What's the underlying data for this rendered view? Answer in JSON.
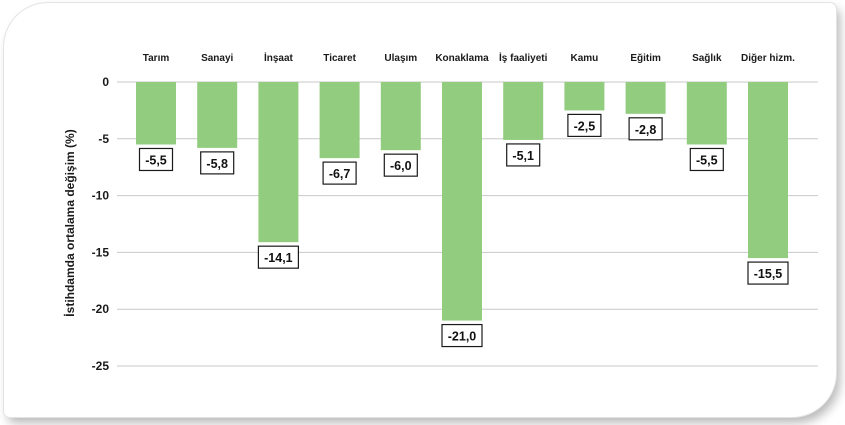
{
  "chart_data": {
    "type": "bar",
    "categories": [
      "Tarım",
      "Sanayi",
      "İnşaat",
      "Ticaret",
      "Ulaşım",
      "Konaklama",
      "İş faaliyeti",
      "Kamu",
      "Eğitim",
      "Sağlık",
      "Diğer hizm."
    ],
    "values": [
      -5.5,
      -5.8,
      -14.1,
      -6.7,
      -6.0,
      -21.0,
      -5.1,
      -2.5,
      -2.8,
      -5.5,
      -15.5
    ],
    "data_labels": [
      "-5,5",
      "-5,8",
      "-14,1",
      "-6,7",
      "-6,0",
      "-21,0",
      "-5,1",
      "-2,5",
      "-2,8",
      "-5,5",
      "-15,5"
    ],
    "ylabel": "İstihdamda ortalama değişim (%)",
    "ylim": [
      -25,
      0
    ],
    "yticks": [
      0,
      -5,
      -10,
      -15,
      -20,
      -25
    ],
    "ytick_labels": [
      "0",
      "-5",
      "-10",
      "-15",
      "-20",
      "-25"
    ],
    "category_axis_position": "top",
    "grid": true,
    "legend": "none",
    "colors": {
      "bar": "#92cc7f",
      "gridline": "#c8c8c8"
    }
  }
}
